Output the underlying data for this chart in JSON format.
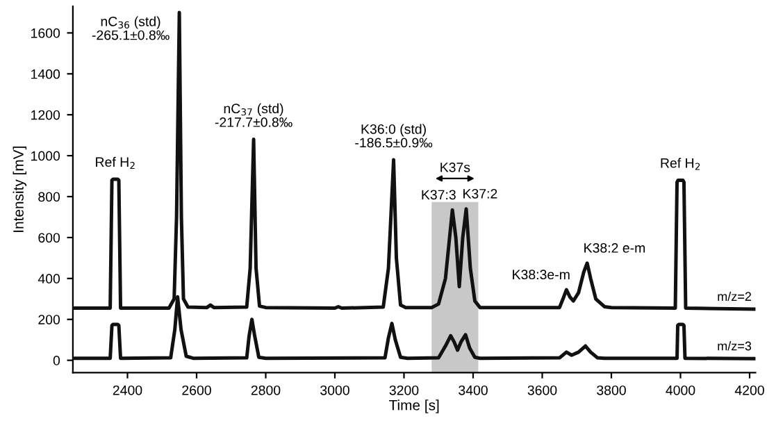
{
  "chart_data": {
    "type": "line",
    "xlabel": "Time [s]",
    "ylabel": "Intensity [mV]",
    "xlim": [
      2242,
      4217
    ],
    "xticks": [
      2400,
      2600,
      2800,
      3000,
      3200,
      3400,
      3600,
      3800,
      4000,
      4200
    ],
    "ylim": [
      -60,
      1730
    ],
    "yticks": [
      0,
      200,
      400,
      600,
      800,
      1000,
      1200,
      1400,
      1600
    ],
    "grid": false,
    "legend": false,
    "marker": "none",
    "line_style": "solid",
    "series": [
      {
        "name": "m/z=2",
        "color": "#111111",
        "x": [
          2242,
          2350,
          2355,
          2358,
          2372,
          2375,
          2380,
          2520,
          2535,
          2542,
          2550,
          2556,
          2562,
          2575,
          2630,
          2640,
          2650,
          2745,
          2755,
          2765,
          2772,
          2782,
          2800,
          3000,
          3010,
          3020,
          3140,
          3155,
          3170,
          3178,
          3190,
          3205,
          3280,
          3300,
          3320,
          3340,
          3350,
          3360,
          3370,
          3380,
          3392,
          3405,
          3420,
          3650,
          3660,
          3670,
          3680,
          3690,
          3705,
          3720,
          3730,
          3740,
          3755,
          3780,
          3800,
          3985,
          3990,
          3993,
          4007,
          4010,
          4015,
          4217
        ],
        "values": [
          255,
          255,
          880,
          885,
          885,
          880,
          255,
          255,
          300,
          700,
          1700,
          700,
          300,
          260,
          258,
          270,
          258,
          260,
          450,
          1080,
          450,
          265,
          258,
          255,
          262,
          255,
          260,
          450,
          980,
          500,
          270,
          258,
          258,
          275,
          400,
          735,
          600,
          360,
          600,
          740,
          450,
          290,
          258,
          258,
          300,
          345,
          310,
          290,
          330,
          430,
          475,
          400,
          300,
          262,
          258,
          255,
          870,
          880,
          880,
          870,
          255,
          250
        ]
      },
      {
        "name": "m/z=3",
        "color": "#111111",
        "x": [
          2242,
          2350,
          2355,
          2358,
          2372,
          2375,
          2380,
          2525,
          2537,
          2545,
          2555,
          2570,
          2590,
          2745,
          2752,
          2760,
          2768,
          2780,
          2800,
          3145,
          3155,
          3165,
          3175,
          3190,
          3210,
          3300,
          3320,
          3335,
          3345,
          3355,
          3365,
          3378,
          3390,
          3405,
          3420,
          3650,
          3670,
          3685,
          3705,
          3725,
          3740,
          3760,
          3780,
          3990,
          3992,
          3995,
          4007,
          4010,
          4013,
          4217
        ],
        "values": [
          10,
          10,
          170,
          175,
          175,
          170,
          10,
          12,
          150,
          310,
          150,
          20,
          10,
          12,
          120,
          200,
          120,
          15,
          10,
          12,
          110,
          180,
          100,
          15,
          10,
          12,
          70,
          120,
          90,
          50,
          90,
          125,
          60,
          15,
          10,
          12,
          40,
          25,
          40,
          70,
          40,
          12,
          10,
          10,
          170,
          175,
          175,
          170,
          10,
          8
        ]
      }
    ],
    "bands": [
      {
        "axis": "x",
        "from": 3280,
        "to": 3415,
        "label": "K37s",
        "color": "#c8c8c8"
      }
    ],
    "annotations": [
      {
        "text": "Ref H$_{2}$",
        "x": 2365,
        "y": 885
      },
      {
        "text": "nC$_{36}$ (std)\n-265.1±0.8‰",
        "x": 2550,
        "y": 1700
      },
      {
        "text": "nC$_{37}$ (std)\n-217.7±0.8‰",
        "x": 2765,
        "y": 1080
      },
      {
        "text": "K36:0 (std)\n-186.5±0.9‰",
        "x": 3170,
        "y": 980
      },
      {
        "text": "K37:3",
        "x": 3340,
        "y": 735
      },
      {
        "text": "K37:2",
        "x": 3380,
        "y": 740
      },
      {
        "text": "K38:3e-m",
        "x": 3670,
        "y": 345
      },
      {
        "text": "K38:2 e-m",
        "x": 3730,
        "y": 475
      },
      {
        "text": "Ref H$_{2}$",
        "x": 4000,
        "y": 880
      }
    ]
  }
}
